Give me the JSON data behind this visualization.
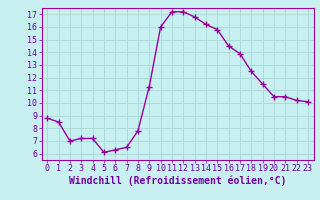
{
  "x": [
    0,
    1,
    2,
    3,
    4,
    5,
    6,
    7,
    8,
    9,
    10,
    11,
    12,
    13,
    14,
    15,
    16,
    17,
    18,
    19,
    20,
    21,
    22,
    23
  ],
  "y": [
    8.8,
    8.5,
    7.0,
    7.2,
    7.2,
    6.1,
    6.3,
    6.5,
    7.8,
    11.3,
    16.0,
    17.2,
    17.2,
    16.8,
    16.2,
    15.8,
    14.5,
    13.9,
    12.5,
    11.5,
    10.5,
    10.5,
    10.2,
    10.1
  ],
  "line_color": "#9b009b",
  "marker": "+",
  "marker_size": 4,
  "bg_color": "#c8f0f0",
  "grid_color": "#a8d8d8",
  "xlabel": "Windchill (Refroidissement éolien,°C)",
  "xlim": [
    -0.5,
    23.5
  ],
  "ylim": [
    5.5,
    17.5
  ],
  "yticks": [
    6,
    7,
    8,
    9,
    10,
    11,
    12,
    13,
    14,
    15,
    16,
    17
  ],
  "xticks": [
    0,
    1,
    2,
    3,
    4,
    5,
    6,
    7,
    8,
    9,
    10,
    11,
    12,
    13,
    14,
    15,
    16,
    17,
    18,
    19,
    20,
    21,
    22,
    23
  ],
  "font_color": "#7000a0",
  "tick_fontsize": 6,
  "xlabel_fontsize": 7,
  "spine_color": "#9b009b"
}
